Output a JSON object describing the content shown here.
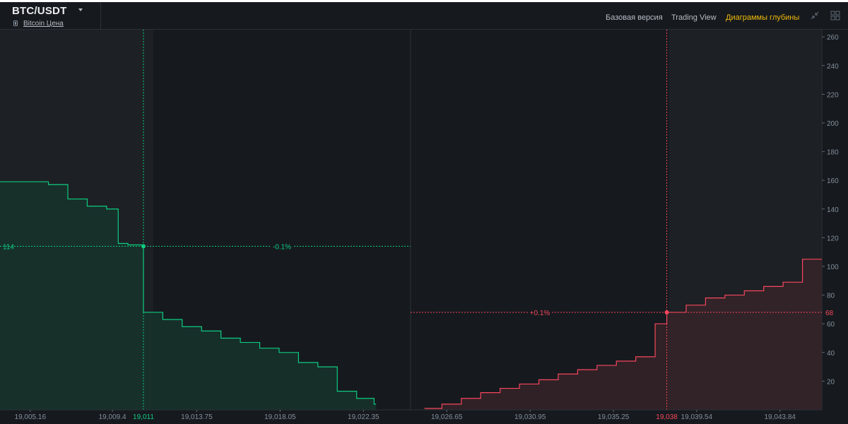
{
  "header": {
    "pair": "BTC/USDT",
    "sub_link": "Bitcoin Цена",
    "tabs": [
      {
        "label": "Базовая версия",
        "active": false
      },
      {
        "label": "Trading View",
        "active": false
      },
      {
        "label": "Диаграммы глубины",
        "active": true
      }
    ],
    "icons": [
      "caret-down-icon",
      "coin-icon",
      "collapse-icon",
      "grid-icon"
    ]
  },
  "colors": {
    "background": "#161a1e",
    "bid_line": "#0ecb81",
    "ask_line": "#f6465d",
    "axis_text": "#848e9c",
    "active_tab": "#f0b90b"
  },
  "chart_data": {
    "type": "area",
    "title": "",
    "ylim": [
      0,
      265
    ],
    "yticks": [
      20,
      40,
      60,
      80,
      100,
      120,
      140,
      160,
      180,
      200,
      220,
      240,
      260
    ],
    "x_tick_labels": [
      "19,005.16",
      "19,009.4",
      "19,013.75",
      "19,018.05",
      "19,022.35",
      "19,026.65",
      "19,030.95",
      "19,035.25",
      "19,039.54",
      "19,043.84"
    ],
    "series": [
      {
        "side": "bids",
        "x": [
          19003.6,
          19006.1,
          19007.1,
          19008.1,
          19009.1,
          19009.7,
          19010.2,
          19011.0,
          19011.0,
          19012.0,
          19013.0,
          19014.0,
          19015.0,
          19016.0,
          19017.0,
          19018.0,
          19019.0,
          19020.0,
          19021.0,
          19022.0,
          19022.9
        ],
        "y": [
          159,
          157,
          147,
          142,
          140,
          116,
          115,
          114,
          68,
          63,
          58,
          55,
          50,
          47,
          43,
          40,
          33,
          30,
          13,
          8,
          4
        ],
        "marker": {
          "price_label": "19,011",
          "depth_label": "114",
          "pct_label": "-0.1%"
        }
      },
      {
        "side": "asks",
        "x": [
          19025.5,
          19026.4,
          19027.4,
          19028.4,
          19029.4,
          19030.4,
          19031.4,
          19032.4,
          19033.4,
          19034.4,
          19035.4,
          19036.4,
          19037.4,
          19038.0,
          19039.0,
          19040.0,
          19041.0,
          19042.0,
          19043.0,
          19044.0,
          19045.0
        ],
        "y": [
          1,
          4,
          8,
          12,
          15,
          18,
          21,
          25,
          28,
          31,
          34,
          37,
          60,
          68,
          73,
          78,
          80,
          83,
          86,
          89,
          105
        ],
        "marker": {
          "price_label": "19,038",
          "depth_label": "68",
          "pct_label": "+0.1%"
        }
      }
    ],
    "grid": false,
    "legend": "none"
  }
}
